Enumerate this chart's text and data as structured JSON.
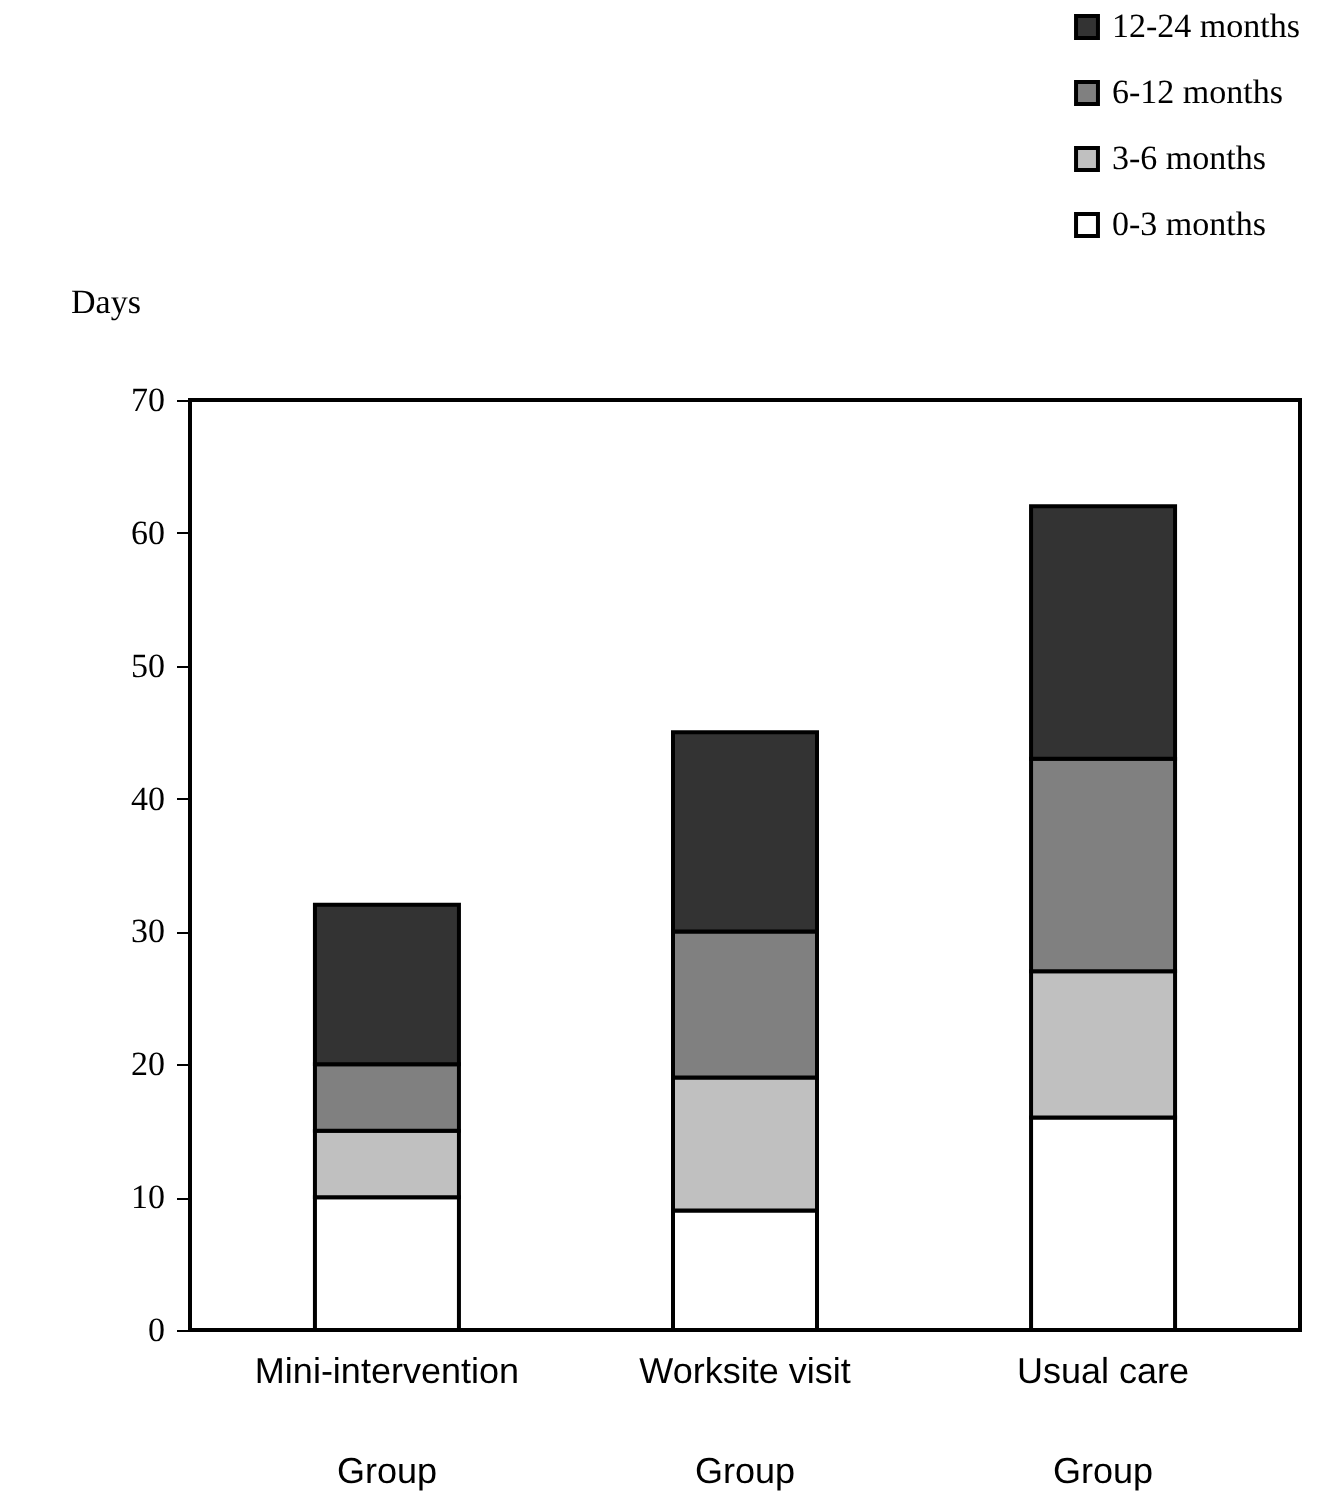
{
  "chart_data": {
    "type": "bar",
    "stacked": true,
    "ylabel": "Days",
    "categories": [
      "Mini-intervention Group",
      "Worksite visit Group",
      "Usual care Group"
    ],
    "series": [
      {
        "name": "0-3 months",
        "color": "#ffffff",
        "values": [
          10,
          9,
          16
        ]
      },
      {
        "name": "3-6 months",
        "color": "#c0c0c0",
        "values": [
          5,
          10,
          11
        ]
      },
      {
        "name": "6-12 months",
        "color": "#808080",
        "values": [
          5,
          11,
          16
        ]
      },
      {
        "name": "12-24 months",
        "color": "#333333",
        "values": [
          12,
          15,
          19
        ]
      }
    ],
    "ylim": [
      0,
      70
    ],
    "yticks": [
      0,
      10,
      20,
      30,
      40,
      50,
      60,
      70
    ],
    "grid": false,
    "legend": "top right"
  }
}
